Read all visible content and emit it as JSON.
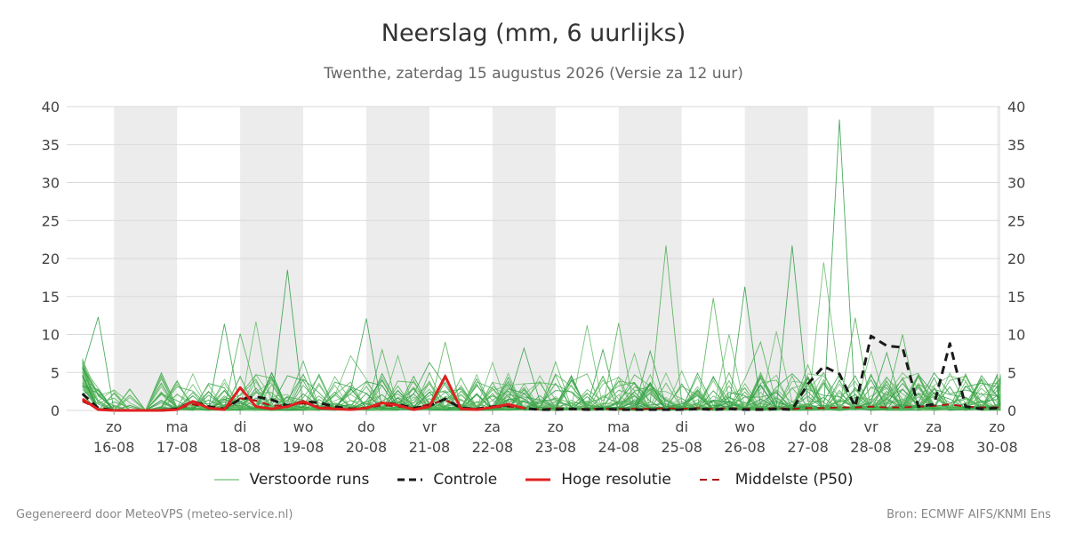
{
  "chart_data": {
    "type": "line",
    "title": "Neerslag (mm, 6 uurlijks)",
    "subtitle": "Twenthe, zaterdag 15 augustus 2026 (Versie za 12 uur)",
    "ylim": [
      0,
      40
    ],
    "y_ticks": [
      0,
      5,
      10,
      15,
      20,
      25,
      30,
      35,
      40
    ],
    "x_range": [
      -0.25,
      14.55
    ],
    "grid": true,
    "weekend_shading": [
      [
        0.5,
        1.5
      ],
      [
        2.5,
        3.5
      ],
      [
        4.5,
        5.5
      ],
      [
        6.5,
        7.5
      ],
      [
        8.5,
        9.5
      ],
      [
        10.5,
        11.5
      ],
      [
        12.5,
        13.5
      ],
      [
        14.5,
        14.55
      ]
    ],
    "x_ticks": [
      {
        "x": 0.5,
        "day": "zo",
        "date": "16-08"
      },
      {
        "x": 1.5,
        "day": "ma",
        "date": "17-08"
      },
      {
        "x": 2.5,
        "day": "di",
        "date": "18-08"
      },
      {
        "x": 3.5,
        "day": "wo",
        "date": "19-08"
      },
      {
        "x": 4.5,
        "day": "do",
        "date": "20-08"
      },
      {
        "x": 5.5,
        "day": "vr",
        "date": "21-08"
      },
      {
        "x": 6.5,
        "day": "za",
        "date": "22-08"
      },
      {
        "x": 7.5,
        "day": "zo",
        "date": "23-08"
      },
      {
        "x": 8.5,
        "day": "ma",
        "date": "24-08"
      },
      {
        "x": 9.5,
        "day": "di",
        "date": "25-08"
      },
      {
        "x": 10.5,
        "day": "wo",
        "date": "26-08"
      },
      {
        "x": 11.5,
        "day": "do",
        "date": "27-08"
      },
      {
        "x": 12.5,
        "day": "vr",
        "date": "28-08"
      },
      {
        "x": 13.5,
        "day": "za",
        "date": "29-08"
      },
      {
        "x": 14.5,
        "day": "zo",
        "date": "30-08"
      }
    ],
    "legend": [
      {
        "name": "Verstoorde runs",
        "color": "#4caf50",
        "style": "thin"
      },
      {
        "name": "Controle",
        "color": "#1a1a1a",
        "style": "dashed"
      },
      {
        "name": "Hoge resolutie",
        "color": "#e02020",
        "style": "solid"
      },
      {
        "name": "Middelste (P50)",
        "color": "#b01010",
        "style": "dashed"
      }
    ],
    "series": [
      {
        "name": "Controle",
        "color": "#1a1a1a",
        "x": [
          0,
          0.25,
          0.5,
          0.75,
          1,
          1.25,
          1.5,
          1.75,
          2,
          2.25,
          2.5,
          2.75,
          3,
          3.25,
          3.5,
          3.75,
          4,
          4.25,
          4.5,
          4.75,
          5,
          5.25,
          5.5,
          5.75,
          6,
          6.25,
          6.5,
          6.75,
          7,
          7.25,
          7.5,
          7.75,
          8,
          8.25,
          8.5,
          8.75,
          9,
          9.25,
          9.5,
          9.75,
          10,
          10.25,
          10.5,
          10.75,
          11,
          11.25,
          11.5,
          11.75,
          12,
          12.25,
          12.5,
          12.75,
          13,
          13.25,
          13.5,
          13.75,
          14,
          14.25,
          14.5,
          14.75,
          15
        ],
        "values": [
          2.2,
          0.3,
          0,
          0,
          0,
          0,
          0.2,
          1.2,
          0.5,
          0.2,
          1.5,
          1.8,
          1.4,
          0.6,
          1.2,
          1.0,
          0.5,
          0.2,
          0.3,
          1.0,
          0.8,
          0.3,
          0.6,
          1.5,
          0.3,
          0.2,
          0.5,
          0.7,
          0.3,
          0.1,
          0.1,
          0.2,
          0.1,
          0.2,
          0.1,
          0.1,
          0.1,
          0.1,
          0.1,
          0.2,
          0.1,
          0.2,
          0.1,
          0.1,
          0.2,
          0.1,
          3.5,
          5.8,
          4.8,
          0.5,
          9.8,
          8.5,
          8.3,
          0.5,
          0.8,
          8.8,
          0.5,
          0.2,
          0.3,
          0.3,
          0.3
        ]
      },
      {
        "name": "Hoge resolutie",
        "color": "#e02020",
        "x": [
          0,
          0.25,
          0.5,
          0.75,
          1,
          1.25,
          1.5,
          1.75,
          2,
          2.25,
          2.5,
          2.75,
          3,
          3.25,
          3.5,
          3.75,
          4,
          4.25,
          4.5,
          4.75,
          5,
          5.25,
          5.5,
          5.75,
          6,
          6.25,
          6.5,
          6.75,
          7
        ],
        "values": [
          1.5,
          0.1,
          0,
          0,
          0,
          0,
          0.1,
          1.2,
          0.3,
          0.1,
          3.0,
          0.5,
          0.2,
          0.5,
          1.2,
          0.3,
          0.2,
          0.1,
          0.3,
          1.0,
          0.7,
          0.1,
          0.5,
          4.5,
          0.2,
          0.1,
          0.4,
          0.8,
          0.3
        ]
      },
      {
        "name": "Middelste (P50)",
        "color": "#b01010",
        "x": [
          0,
          0.25,
          0.5,
          0.75,
          1,
          1.25,
          1.5,
          1.75,
          2,
          2.25,
          2.5,
          2.75,
          3,
          3.25,
          3.5,
          3.75,
          4,
          4.25,
          4.5,
          4.75,
          5,
          5.25,
          5.5,
          5.75,
          6,
          6.25,
          6.5,
          6.75,
          7,
          7.25,
          7.5,
          7.75,
          8,
          8.25,
          8.5,
          8.75,
          9,
          9.25,
          9.5,
          9.75,
          10,
          10.25,
          10.5,
          10.75,
          11,
          11.25,
          11.5,
          11.75,
          12,
          12.25,
          12.5,
          12.75,
          13,
          13.25,
          13.5,
          13.75,
          14,
          14.25,
          14.5,
          14.75,
          15
        ],
        "values": [
          1.2,
          0.2,
          0,
          0,
          0,
          0,
          0.2,
          0.8,
          0.4,
          0.2,
          1.6,
          1.3,
          0.6,
          0.7,
          0.9,
          0.5,
          0.3,
          0.2,
          0.3,
          0.7,
          0.5,
          0.3,
          0.8,
          1.4,
          0.3,
          0.2,
          0.4,
          0.5,
          0.3,
          0.1,
          0.3,
          0.2,
          0.2,
          0.2,
          0.2,
          0.2,
          0.2,
          0.3,
          0.2,
          0.3,
          0.2,
          0.3,
          0.2,
          0.2,
          0.3,
          0.2,
          0.3,
          0.3,
          0.4,
          0.4,
          0.5,
          0.4,
          0.4,
          0.5,
          0.6,
          0.8,
          0.5,
          0.4,
          0.4,
          0.4,
          0.4
        ]
      }
    ],
    "ensemble_peaks": [
      {
        "x": 0.25,
        "y": 12.3
      },
      {
        "x": 1.25,
        "y": 4.5
      },
      {
        "x": 1.75,
        "y": 4.8
      },
      {
        "x": 2.25,
        "y": 11.4
      },
      {
        "x": 2.5,
        "y": 10.1
      },
      {
        "x": 2.75,
        "y": 11.7
      },
      {
        "x": 3.25,
        "y": 18.5
      },
      {
        "x": 3.5,
        "y": 6.5
      },
      {
        "x": 4.25,
        "y": 7.2
      },
      {
        "x": 4.5,
        "y": 12.1
      },
      {
        "x": 4.75,
        "y": 8.0
      },
      {
        "x": 5.0,
        "y": 7.2
      },
      {
        "x": 5.5,
        "y": 6.3
      },
      {
        "x": 5.75,
        "y": 9.0
      },
      {
        "x": 6.5,
        "y": 6.3
      },
      {
        "x": 7.0,
        "y": 8.2
      },
      {
        "x": 7.5,
        "y": 6.4
      },
      {
        "x": 8.0,
        "y": 11.2
      },
      {
        "x": 8.25,
        "y": 8.0
      },
      {
        "x": 8.5,
        "y": 11.5
      },
      {
        "x": 8.75,
        "y": 7.5
      },
      {
        "x": 9.0,
        "y": 7.8
      },
      {
        "x": 9.25,
        "y": 21.7
      },
      {
        "x": 9.5,
        "y": 5.2
      },
      {
        "x": 9.75,
        "y": 4.9
      },
      {
        "x": 10.0,
        "y": 14.8
      },
      {
        "x": 10.25,
        "y": 10.0
      },
      {
        "x": 10.5,
        "y": 16.3
      },
      {
        "x": 10.75,
        "y": 9.0
      },
      {
        "x": 11.0,
        "y": 10.4
      },
      {
        "x": 11.25,
        "y": 21.7
      },
      {
        "x": 11.5,
        "y": 6.0
      },
      {
        "x": 11.75,
        "y": 19.5
      },
      {
        "x": 12.0,
        "y": 38.3
      },
      {
        "x": 12.25,
        "y": 12.2
      },
      {
        "x": 12.5,
        "y": 7.8
      },
      {
        "x": 12.75,
        "y": 7.6
      },
      {
        "x": 13.0,
        "y": 10.0
      }
    ]
  },
  "footer": {
    "left": "Gegenereerd door MeteoVPS (meteo-service.nl)",
    "right": "Bron: ECMWF AIFS/KNMI Ens"
  }
}
